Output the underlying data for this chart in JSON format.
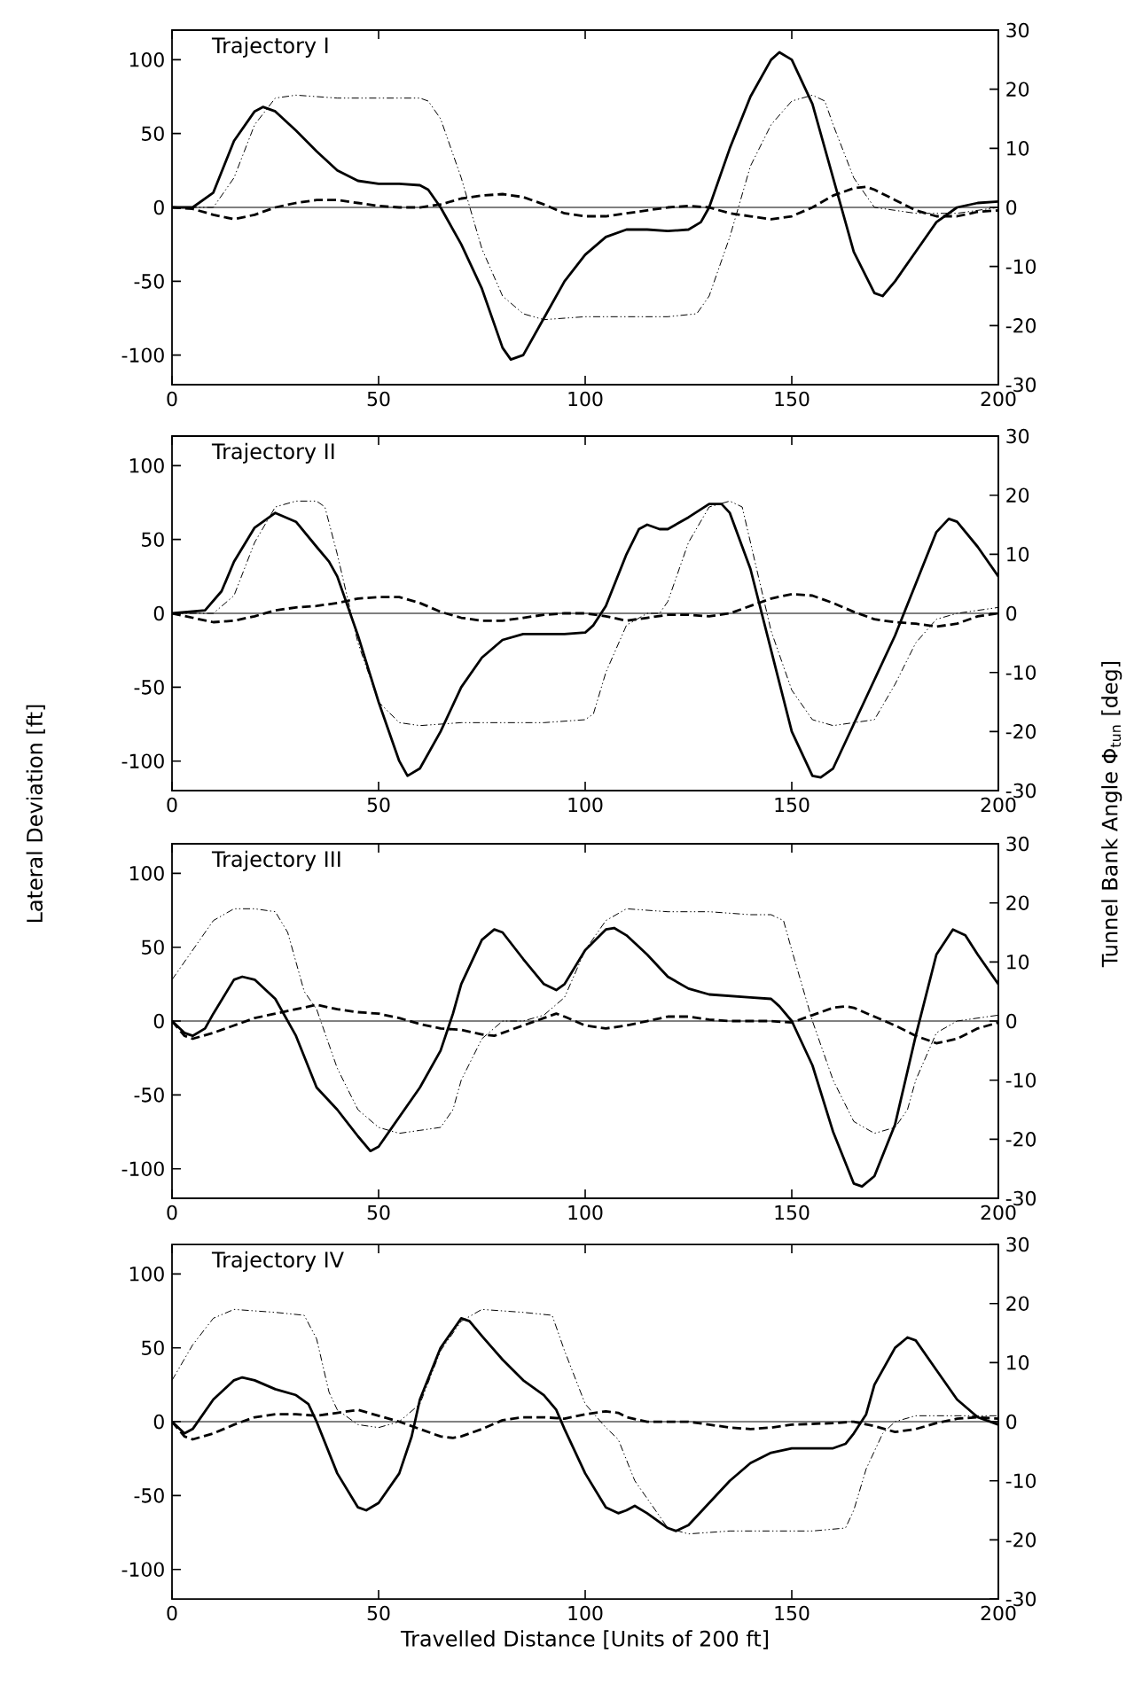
{
  "chart_data": [
    {
      "type": "line",
      "title": "Trajectory I",
      "xlim": [
        0,
        200
      ],
      "ylim": [
        -120,
        120
      ],
      "y2lim": [
        -30,
        30
      ],
      "xticks": [
        0,
        50,
        100,
        150,
        200
      ],
      "yticks": [
        -100,
        -50,
        0,
        50,
        100
      ],
      "y2ticks": [
        -30,
        -20,
        -10,
        0,
        10,
        20,
        30
      ],
      "grid": false,
      "ref_lines": [
        {
          "axis": "y",
          "value": 0,
          "color": "#000000"
        }
      ],
      "series": [
        {
          "color": "#000000",
          "line_style": "solid",
          "x": [
            0,
            5,
            10,
            15,
            20,
            22,
            25,
            30,
            35,
            40,
            45,
            50,
            55,
            60,
            62,
            65,
            70,
            75,
            80,
            82,
            85,
            90,
            95,
            100,
            105,
            110,
            115,
            120,
            125,
            128,
            130,
            135,
            140,
            145,
            147,
            150,
            155,
            160,
            165,
            170,
            172,
            175,
            180,
            185,
            190,
            195,
            200
          ],
          "values": [
            0,
            0,
            10,
            45,
            65,
            68,
            65,
            52,
            38,
            25,
            18,
            16,
            16,
            15,
            12,
            0,
            -25,
            -55,
            -95,
            -103,
            -100,
            -75,
            -50,
            -32,
            -20,
            -15,
            -15,
            -16,
            -15,
            -10,
            0,
            40,
            75,
            100,
            105,
            100,
            70,
            20,
            -30,
            -58,
            -60,
            -50,
            -30,
            -10,
            0,
            3,
            4
          ]
        },
        {
          "color": "#000000",
          "line_style": "dashed",
          "x": [
            0,
            5,
            10,
            15,
            20,
            25,
            30,
            35,
            40,
            45,
            50,
            55,
            60,
            65,
            70,
            75,
            80,
            85,
            90,
            95,
            100,
            105,
            110,
            115,
            120,
            125,
            130,
            135,
            140,
            145,
            150,
            155,
            160,
            165,
            168,
            170,
            175,
            180,
            185,
            190,
            195,
            200
          ],
          "values": [
            0,
            -1,
            -5,
            -8,
            -5,
            0,
            3,
            5,
            5,
            3,
            1,
            0,
            0,
            2,
            6,
            8,
            9,
            7,
            2,
            -4,
            -6,
            -6,
            -4,
            -2,
            0,
            1,
            0,
            -4,
            -6,
            -8,
            -6,
            0,
            8,
            13,
            14,
            12,
            5,
            -2,
            -6,
            -6,
            -3,
            -2
          ]
        },
        {
          "color": "#000000",
          "line_style": "dotted",
          "axis": "y2",
          "x": [
            0,
            10,
            15,
            20,
            25,
            30,
            40,
            50,
            60,
            62,
            65,
            70,
            75,
            80,
            85,
            90,
            100,
            110,
            120,
            127,
            130,
            135,
            140,
            145,
            150,
            155,
            158,
            160,
            165,
            170,
            175,
            180,
            190,
            200
          ],
          "values": [
            0,
            0,
            5,
            14,
            18.5,
            19,
            18.5,
            18.5,
            18.5,
            18,
            15,
            5,
            -7,
            -15,
            -18,
            -19,
            -18.5,
            -18.5,
            -18.5,
            -18,
            -15,
            -5,
            7,
            14,
            18,
            19,
            18,
            14,
            5,
            0,
            -0.5,
            -1,
            -1,
            0
          ]
        }
      ]
    },
    {
      "type": "line",
      "title": "Trajectory II",
      "ylabel": "Lateral Deviation [ft]",
      "y2label": "Tunnel Bank Angle Φ$_{tun}$ [deg]",
      "xlim": [
        0,
        200
      ],
      "ylim": [
        -120,
        120
      ],
      "y2lim": [
        -30,
        30
      ],
      "xticks": [
        0,
        50,
        100,
        150,
        200
      ],
      "yticks": [
        -100,
        -50,
        0,
        50,
        100
      ],
      "y2ticks": [
        -30,
        -20,
        -10,
        0,
        10,
        20,
        30
      ],
      "grid": false,
      "ref_lines": [
        {
          "axis": "y",
          "value": 0,
          "color": "#000000"
        }
      ],
      "series": [
        {
          "color": "#000000",
          "line_style": "solid",
          "x": [
            0,
            8,
            12,
            15,
            20,
            25,
            30,
            35,
            38,
            40,
            45,
            50,
            55,
            57,
            60,
            65,
            70,
            75,
            80,
            85,
            90,
            95,
            100,
            102,
            105,
            110,
            113,
            115,
            118,
            120,
            125,
            130,
            133,
            135,
            140,
            145,
            150,
            155,
            157,
            160,
            165,
            170,
            175,
            180,
            185,
            188,
            190,
            195,
            200
          ],
          "values": [
            0,
            2,
            15,
            35,
            58,
            68,
            62,
            45,
            35,
            25,
            -15,
            -60,
            -100,
            -110,
            -105,
            -80,
            -50,
            -30,
            -18,
            -14,
            -14,
            -14,
            -13,
            -8,
            5,
            40,
            57,
            60,
            57,
            57,
            65,
            74,
            74,
            68,
            30,
            -25,
            -80,
            -110,
            -111,
            -105,
            -75,
            -45,
            -15,
            20,
            55,
            64,
            62,
            45,
            25
          ]
        },
        {
          "color": "#000000",
          "line_style": "dashed",
          "x": [
            0,
            5,
            10,
            15,
            20,
            25,
            30,
            35,
            40,
            45,
            50,
            55,
            60,
            65,
            70,
            75,
            80,
            85,
            90,
            95,
            100,
            105,
            110,
            115,
            120,
            125,
            130,
            135,
            140,
            145,
            150,
            155,
            160,
            165,
            170,
            175,
            180,
            185,
            190,
            195,
            200
          ],
          "values": [
            0,
            -3,
            -6,
            -5,
            -2,
            2,
            4,
            5,
            7,
            10,
            11,
            11,
            7,
            1,
            -3,
            -5,
            -5,
            -3,
            -1,
            0,
            0,
            -2,
            -5,
            -3,
            -1,
            -1,
            -2,
            0,
            5,
            10,
            13,
            12,
            7,
            1,
            -4,
            -6,
            -7,
            -9,
            -7,
            -2,
            0
          ]
        },
        {
          "color": "#000000",
          "line_style": "dotted",
          "axis": "y2",
          "x": [
            0,
            10,
            15,
            20,
            25,
            30,
            35,
            37,
            40,
            45,
            50,
            55,
            60,
            70,
            80,
            90,
            100,
            102,
            105,
            110,
            115,
            118,
            120,
            125,
            130,
            135,
            138,
            140,
            145,
            150,
            155,
            160,
            165,
            170,
            175,
            180,
            185,
            190,
            195,
            200
          ],
          "values": [
            0,
            0,
            3,
            12,
            18,
            19,
            19,
            18,
            10,
            -5,
            -15,
            -18.5,
            -19,
            -18.5,
            -18.5,
            -18.5,
            -18,
            -17,
            -10,
            -2,
            0,
            0,
            2,
            12,
            18,
            19,
            18,
            12,
            -3,
            -13,
            -18,
            -19,
            -18.5,
            -18,
            -12,
            -5,
            -1,
            0,
            0.5,
            1
          ]
        }
      ]
    },
    {
      "type": "line",
      "title": "Trajectory III",
      "xlim": [
        0,
        200
      ],
      "ylim": [
        -120,
        120
      ],
      "y2lim": [
        -30,
        30
      ],
      "xticks": [
        0,
        50,
        100,
        150,
        200
      ],
      "yticks": [
        -100,
        -50,
        0,
        50,
        100
      ],
      "y2ticks": [
        -30,
        -20,
        -10,
        0,
        10,
        20,
        30
      ],
      "grid": false,
      "ref_lines": [
        {
          "axis": "y",
          "value": 0,
          "color": "#000000"
        }
      ],
      "series": [
        {
          "color": "#000000",
          "line_style": "solid",
          "x": [
            0,
            3,
            5,
            8,
            10,
            15,
            17,
            20,
            25,
            30,
            35,
            40,
            45,
            48,
            50,
            55,
            60,
            65,
            68,
            70,
            75,
            78,
            80,
            85,
            90,
            93,
            95,
            100,
            105,
            107,
            110,
            115,
            120,
            125,
            130,
            140,
            145,
            147,
            150,
            155,
            160,
            165,
            167,
            170,
            175,
            180,
            185,
            189,
            192,
            195,
            200
          ],
          "values": [
            0,
            -8,
            -10,
            -5,
            5,
            28,
            30,
            28,
            15,
            -10,
            -45,
            -60,
            -78,
            -88,
            -85,
            -65,
            -45,
            -20,
            5,
            25,
            55,
            62,
            60,
            42,
            25,
            21,
            25,
            48,
            62,
            63,
            58,
            45,
            30,
            22,
            18,
            16,
            15,
            10,
            0,
            -30,
            -75,
            -110,
            -112,
            -105,
            -70,
            -10,
            45,
            62,
            58,
            45,
            25
          ]
        },
        {
          "color": "#000000",
          "line_style": "dashed",
          "x": [
            0,
            3,
            5,
            10,
            15,
            20,
            25,
            30,
            35,
            40,
            45,
            50,
            55,
            60,
            65,
            70,
            75,
            78,
            80,
            85,
            90,
            93,
            95,
            100,
            105,
            110,
            115,
            120,
            125,
            130,
            135,
            140,
            145,
            150,
            155,
            160,
            163,
            165,
            170,
            175,
            180,
            185,
            190,
            195,
            200
          ],
          "values": [
            0,
            -10,
            -12,
            -8,
            -3,
            2,
            5,
            8,
            11,
            8,
            6,
            5,
            2,
            -2,
            -5,
            -6,
            -9,
            -10,
            -8,
            -3,
            2,
            5,
            3,
            -3,
            -5,
            -3,
            0,
            3,
            3,
            1,
            0,
            0,
            0,
            -1,
            4,
            9,
            10,
            9,
            3,
            -3,
            -10,
            -15,
            -12,
            -5,
            -1
          ]
        },
        {
          "color": "#000000",
          "line_style": "dotted",
          "axis": "y2",
          "x": [
            0,
            5,
            10,
            15,
            20,
            25,
            28,
            32,
            35,
            40,
            45,
            50,
            55,
            60,
            65,
            68,
            70,
            75,
            80,
            85,
            90,
            95,
            100,
            105,
            110,
            120,
            130,
            140,
            145,
            148,
            150,
            155,
            160,
            165,
            170,
            175,
            178,
            180,
            185,
            190,
            195,
            200
          ],
          "values": [
            7,
            12,
            17,
            19,
            19,
            18.5,
            15,
            5,
            2,
            -8,
            -15,
            -18,
            -19,
            -18.5,
            -18,
            -15,
            -10,
            -3,
            0,
            0,
            1,
            4,
            12,
            17,
            19,
            18.5,
            18.5,
            18,
            18,
            17,
            12,
            0,
            -10,
            -17,
            -19,
            -18,
            -15,
            -10,
            -2,
            0,
            0.5,
            1
          ]
        }
      ]
    },
    {
      "type": "line",
      "title": "Trajectory IV",
      "xlabel": "Travelled Distance [Units of 200 ft]",
      "xlim": [
        0,
        200
      ],
      "ylim": [
        -120,
        120
      ],
      "y2lim": [
        -30,
        30
      ],
      "xticks": [
        0,
        50,
        100,
        150,
        200
      ],
      "yticks": [
        -100,
        -50,
        0,
        50,
        100
      ],
      "y2ticks": [
        -30,
        -20,
        -10,
        0,
        10,
        20,
        30
      ],
      "grid": false,
      "ref_lines": [
        {
          "axis": "y",
          "value": 0,
          "color": "#000000"
        }
      ],
      "series": [
        {
          "color": "#000000",
          "line_style": "solid",
          "x": [
            0,
            3,
            5,
            10,
            15,
            17,
            20,
            25,
            30,
            33,
            35,
            40,
            45,
            47,
            50,
            55,
            58,
            60,
            65,
            70,
            72,
            75,
            80,
            85,
            90,
            93,
            95,
            100,
            105,
            108,
            110,
            112,
            115,
            120,
            122,
            125,
            130,
            135,
            140,
            145,
            150,
            155,
            160,
            163,
            165,
            168,
            170,
            175,
            178,
            180,
            185,
            190,
            195,
            200
          ],
          "values": [
            0,
            -8,
            -5,
            15,
            28,
            30,
            28,
            22,
            18,
            12,
            0,
            -35,
            -58,
            -60,
            -55,
            -35,
            -10,
            15,
            50,
            70,
            68,
            58,
            42,
            28,
            18,
            8,
            -5,
            -35,
            -58,
            -62,
            -60,
            -57,
            -62,
            -72,
            -74,
            -70,
            -55,
            -40,
            -28,
            -21,
            -18,
            -18,
            -18,
            -15,
            -8,
            5,
            25,
            50,
            57,
            55,
            35,
            15,
            3,
            -2
          ]
        },
        {
          "color": "#000000",
          "line_style": "dashed",
          "x": [
            0,
            3,
            5,
            10,
            15,
            20,
            25,
            30,
            35,
            40,
            45,
            50,
            55,
            60,
            65,
            68,
            70,
            75,
            80,
            85,
            90,
            95,
            100,
            105,
            108,
            110,
            115,
            120,
            125,
            130,
            135,
            140,
            145,
            150,
            160,
            165,
            170,
            175,
            180,
            185,
            190,
            195,
            200
          ],
          "values": [
            0,
            -10,
            -12,
            -8,
            -2,
            3,
            5,
            5,
            4,
            6,
            8,
            4,
            0,
            -5,
            -10,
            -11,
            -10,
            -5,
            1,
            3,
            3,
            2,
            5,
            7,
            6,
            3,
            0,
            0,
            0,
            -2,
            -4,
            -5,
            -4,
            -2,
            -1,
            0,
            -3,
            -7,
            -5,
            -1,
            2,
            3,
            2
          ]
        },
        {
          "color": "#000000",
          "line_style": "dotted",
          "axis": "y2",
          "x": [
            0,
            5,
            10,
            15,
            25,
            32,
            35,
            38,
            40,
            45,
            50,
            55,
            60,
            65,
            70,
            75,
            85,
            92,
            95,
            100,
            105,
            108,
            112,
            115,
            120,
            125,
            135,
            145,
            155,
            163,
            165,
            168,
            172,
            175,
            180,
            190,
            200
          ],
          "values": [
            7,
            13,
            17.5,
            19,
            18.5,
            18,
            14,
            5,
            2,
            -0.5,
            -1,
            0,
            3,
            12,
            17,
            19,
            18.5,
            18,
            12,
            3,
            -1,
            -3,
            -10,
            -13,
            -18,
            -19,
            -18.5,
            -18.5,
            -18.5,
            -18,
            -15,
            -8,
            -2,
            0,
            1,
            1,
            1
          ]
        }
      ]
    }
  ]
}
